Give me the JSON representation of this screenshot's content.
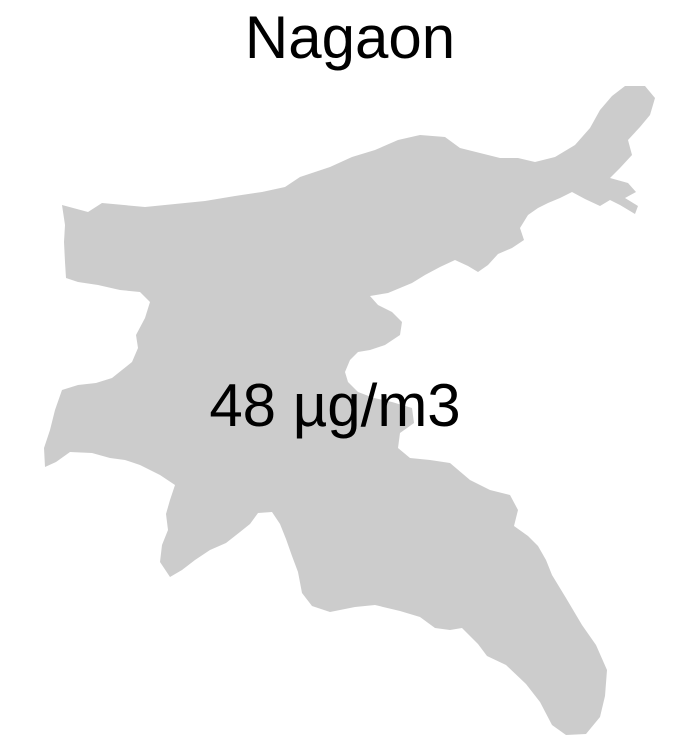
{
  "map": {
    "title": "Nagaon",
    "region_fill": "#cccccc",
    "value_label": "48 µg/m3"
  }
}
